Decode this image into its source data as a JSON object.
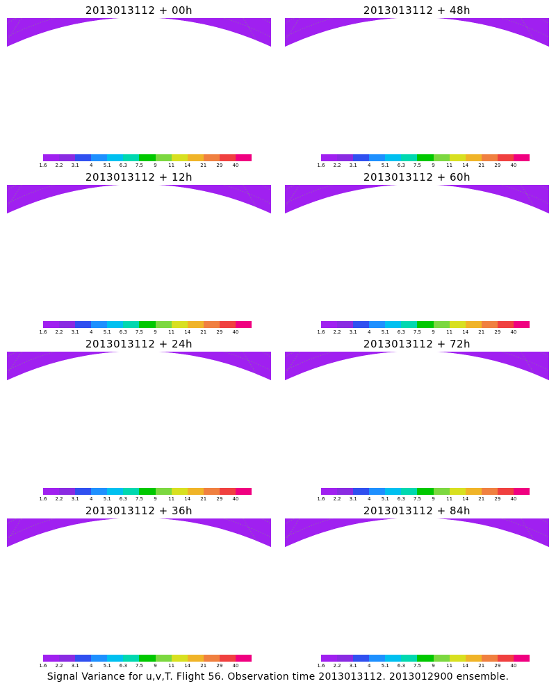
{
  "panels": [
    {
      "title": "2013013112 + 00h",
      "intensity": 0
    },
    {
      "title": "2013013112 + 48h",
      "intensity": 4
    },
    {
      "title": "2013013112 + 12h",
      "intensity": 1
    },
    {
      "title": "2013013112 + 60h",
      "intensity": 5
    },
    {
      "title": "2013013112 + 24h",
      "intensity": 2
    },
    {
      "title": "2013013112 + 72h",
      "intensity": 6
    },
    {
      "title": "2013013112 + 36h",
      "intensity": 3
    },
    {
      "title": "2013013112 + 84h",
      "intensity": 7
    }
  ],
  "colorbar": {
    "labels": [
      "1.6",
      "2.2",
      "3.1",
      "4",
      "5.1",
      "6.3",
      "7.5",
      "9",
      "11",
      "14",
      "21",
      "29",
      "40"
    ],
    "colors": [
      "#a020f0",
      "#8a2be2",
      "#3050f0",
      "#1e90ff",
      "#00c0f0",
      "#00d8b0",
      "#00c800",
      "#7cd840",
      "#d8e020",
      "#f0b428",
      "#f08040",
      "#f04040",
      "#f00080"
    ]
  },
  "caption": "Signal Variance for u,v,T. Flight 56. Observation time 2013013112. 2013012900 ensemble."
}
